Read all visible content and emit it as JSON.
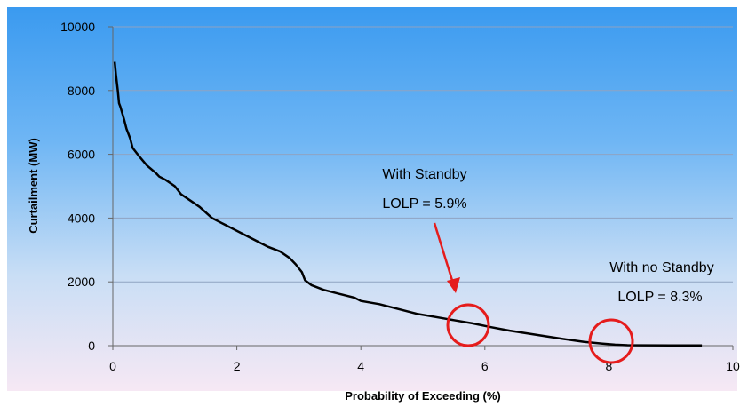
{
  "chart_data": {
    "type": "line",
    "xlabel": "Probability of Exceeding (%)",
    "ylabel": "Curtailment (MW)",
    "xlim": [
      0,
      10
    ],
    "ylim": [
      0,
      10000
    ],
    "x_ticks": [
      0,
      2,
      4,
      6,
      8,
      10
    ],
    "y_ticks": [
      0,
      2000,
      4000,
      6000,
      8000,
      10000
    ],
    "x_tick_labels": [
      "0",
      "2",
      "4",
      "6",
      "8",
      "10"
    ],
    "y_tick_labels": [
      "0",
      "2000",
      "4000",
      "6000",
      "8000",
      "10000"
    ],
    "grid": "horizontal",
    "series": [
      {
        "color": "#000000",
        "x": [
          0.03,
          0.05,
          0.08,
          0.1,
          0.12,
          0.18,
          0.22,
          0.28,
          0.32,
          0.42,
          0.55,
          0.7,
          0.75,
          0.85,
          1.0,
          1.1,
          1.25,
          1.4,
          1.6,
          1.75,
          1.9,
          2.1,
          2.3,
          2.5,
          2.7,
          2.85,
          2.95,
          3.05,
          3.1,
          3.2,
          3.4,
          3.7,
          3.9,
          4.0,
          4.3,
          4.6,
          4.9,
          5.2,
          5.5,
          5.8,
          6.1,
          6.4,
          6.7,
          7.0,
          7.3,
          7.6,
          7.9,
          8.1,
          8.3,
          8.5,
          9.0,
          9.5
        ],
        "y": [
          8900,
          8500,
          8000,
          7600,
          7500,
          7100,
          6800,
          6500,
          6200,
          5950,
          5650,
          5400,
          5300,
          5200,
          5000,
          4750,
          4550,
          4350,
          4000,
          3850,
          3700,
          3500,
          3300,
          3100,
          2950,
          2750,
          2550,
          2300,
          2050,
          1900,
          1750,
          1600,
          1500,
          1400,
          1300,
          1150,
          1000,
          900,
          800,
          700,
          580,
          470,
          380,
          290,
          200,
          120,
          60,
          30,
          15,
          10,
          5,
          5
        ]
      }
    ],
    "annotations": [
      {
        "line1": "With Standby",
        "line2": "LOLP = 5.9%",
        "x": 5.9,
        "y": 700,
        "marker_color": "#e51c1c"
      },
      {
        "line1": "With no Standby",
        "line2": "LOLP = 8.3%",
        "x": 8.3,
        "y": 30,
        "marker_color": "#e51c1c"
      }
    ]
  }
}
